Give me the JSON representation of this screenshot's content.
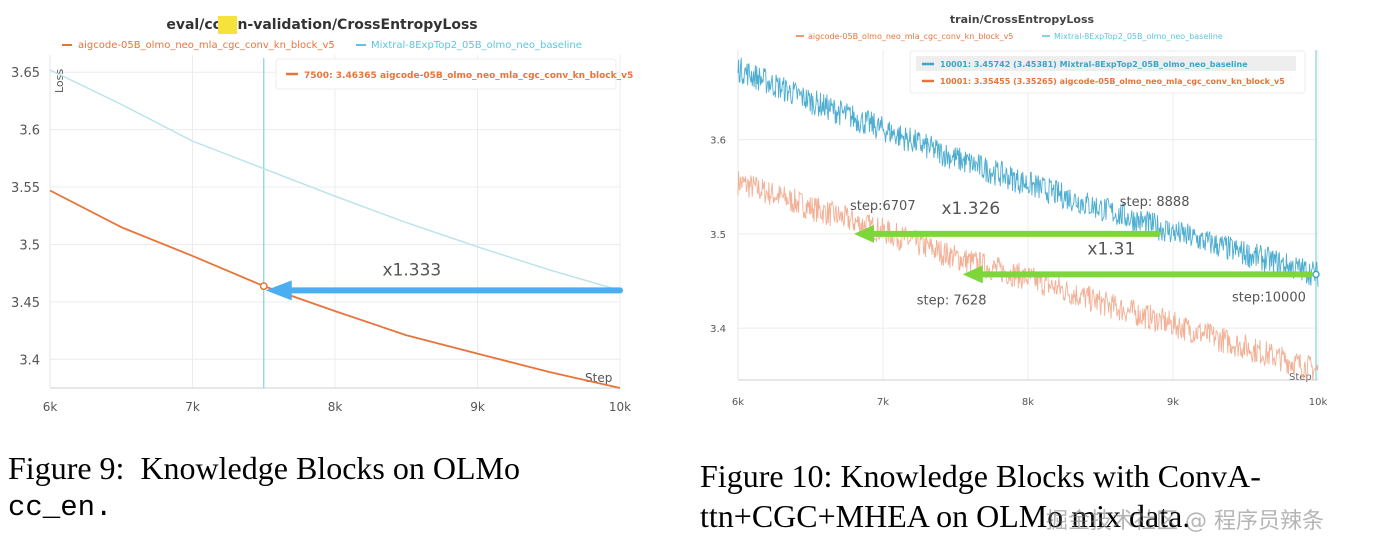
{
  "chart_data": [
    {
      "type": "line",
      "title_prefix": "eval/",
      "title_highlight": "cc",
      "title_suffix": "_en-validation/CrossEntropyLoss",
      "xlabel": "Step",
      "ylabel": "Loss",
      "xlim": [
        6000,
        10000
      ],
      "ylim": [
        3.375,
        3.665
      ],
      "x_ticks": [
        6000,
        7000,
        8000,
        9000,
        10000
      ],
      "x_tick_labels": [
        "6k",
        "7k",
        "8k",
        "9k",
        "10k"
      ],
      "y_ticks": [
        3.4,
        3.45,
        3.5,
        3.55,
        3.6,
        3.65
      ],
      "y_tick_labels": [
        "3.4",
        "3.45",
        "3.5",
        "3.55",
        "3.6",
        "3.65"
      ],
      "series": [
        {
          "name": "aigcode-05B_olmo_neo_mla_cgc_conv_kn_block_v5",
          "color": "#e8743b",
          "x": [
            6000,
            6500,
            7000,
            7500,
            8000,
            8500,
            9000,
            9500,
            10000
          ],
          "y": [
            3.547,
            3.515,
            3.49,
            3.4637,
            3.442,
            3.421,
            3.405,
            3.389,
            3.375
          ]
        },
        {
          "name": "Mixtral-8ExpTop2_05B_olmo_neo_baseline",
          "color": "#b9e3ea",
          "x": [
            6000,
            6500,
            7000,
            7500,
            8000,
            8500,
            9000,
            9500,
            10000
          ],
          "y": [
            3.652,
            3.622,
            3.59,
            3.566,
            3.542,
            3.519,
            3.498,
            3.478,
            3.46
          ]
        }
      ],
      "tooltip": {
        "step": "7500",
        "value": "3.46365",
        "name": "aigcode-05B_olmo_neo_mla_cgc_conv_kn_block_v5"
      },
      "cursor_x": 7500,
      "annotation": {
        "text": "x1.333",
        "from": [
          10000,
          3.46
        ],
        "to": [
          7500,
          3.4637
        ],
        "color": "#4aaef0"
      }
    },
    {
      "type": "line",
      "title": "train/CrossEntropyLoss",
      "xlabel": "Step",
      "ylabel": "",
      "xlim": [
        6000,
        10000
      ],
      "ylim": [
        3.345,
        3.695
      ],
      "x_ticks": [
        6000,
        7000,
        8000,
        9000,
        10000
      ],
      "x_tick_labels": [
        "6k",
        "7k",
        "8k",
        "9k",
        "10k"
      ],
      "y_ticks": [
        3.4,
        3.5,
        3.6
      ],
      "y_tick_labels": [
        "3.4",
        "3.5",
        "3.6"
      ],
      "series": [
        {
          "name": "aigcode-05B_olmo_neo_mla_cgc_conv_kn_block_v5",
          "color": "#f0a384",
          "x": [
            6000,
            6500,
            7000,
            7500,
            8000,
            8500,
            9000,
            9500,
            10000
          ],
          "y": [
            3.555,
            3.528,
            3.503,
            3.475,
            3.453,
            3.427,
            3.404,
            3.38,
            3.355
          ]
        },
        {
          "name": "Mixtral-8ExpTop2_05B_olmo_neo_baseline",
          "color": "#3aa4cb",
          "x": [
            6000,
            6500,
            7000,
            7500,
            8000,
            8500,
            9000,
            9500,
            10000
          ],
          "y": [
            3.675,
            3.641,
            3.611,
            3.58,
            3.553,
            3.527,
            3.502,
            3.479,
            3.457
          ]
        }
      ],
      "legend_hover": [
        {
          "step": "10001",
          "value": "3.45742",
          "smoothed": "(3.45381)",
          "name": "Mixtral-8ExpTop2_05B_olmo_neo_baseline",
          "color": "#3aa4cb"
        },
        {
          "step": "10001",
          "value": "3.35455",
          "smoothed": "(3.35265)",
          "name": "aigcode-05B_olmo_neo_mla_cgc_conv_kn_block_v5",
          "color": "#e8743b"
        }
      ],
      "cursor_x": 10000,
      "annotations": [
        {
          "text": "x1.326",
          "from": [
            8950,
            3.5
          ],
          "to": [
            6800,
            3.5
          ],
          "color": "#7ed63a",
          "start_label": "step: 8888",
          "end_label": "step:6707"
        },
        {
          "text": "x1.31",
          "from": [
            10000,
            3.457
          ],
          "to": [
            7550,
            3.457
          ],
          "color": "#7ed63a",
          "start_label": "step:10000",
          "end_label": "step: 7628"
        }
      ]
    }
  ],
  "captions": {
    "fig9_line1": "Figure 9:  Knowledge Blocks on OLMo",
    "fig9_line2": "cc_en.",
    "fig10_line1": "Figure 10: Knowledge Blocks with ConvA-",
    "fig10_line2": "ttn+CGC+MHEA on OLMo mix data."
  },
  "watermark": "掘金技术社区 @ 程序员辣条"
}
